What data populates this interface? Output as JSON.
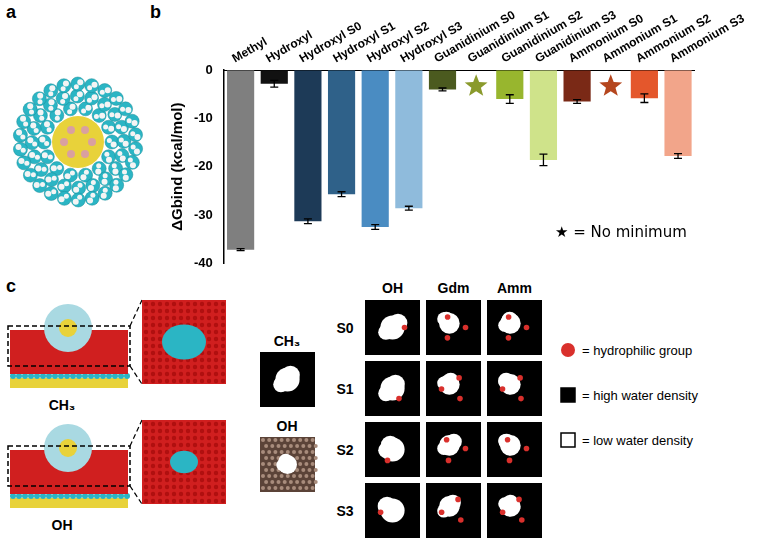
{
  "panel_labels": [
    "a",
    "b",
    "c"
  ],
  "chart_data": {
    "type": "bar",
    "categories": [
      "Methyl",
      "Hydroxyl",
      "Hydroxyl S0",
      "Hydroxyl S1",
      "Hydroxyl S2",
      "Hydroxyl S3",
      "Guanidinium S0",
      "Guanidinium S1",
      "Guanidinium S2",
      "Guanidinium S3",
      "Ammonium S0",
      "Ammonium S1",
      "Ammonium S2",
      "Ammonium S3"
    ],
    "values": [
      -37.2,
      -2.8,
      -31.3,
      -25.7,
      -32.5,
      -28.6,
      -4.0,
      null,
      -6.0,
      -18.6,
      -6.5,
      null,
      -5.8,
      -17.8
    ],
    "errors": [
      0.2,
      0.7,
      0.5,
      0.5,
      0.5,
      0.4,
      0.3,
      null,
      0.9,
      1.2,
      0.4,
      null,
      0.9,
      0.5
    ],
    "colors": [
      "#7f7f7f",
      "#111111",
      "#1d3a57",
      "#2f6189",
      "#4a8cc2",
      "#8fbbdc",
      "#4b5a1f",
      "#8a9a2c",
      "#98b62e",
      "#cfe38a",
      "#7a2916",
      "#b5461e",
      "#e4572c",
      "#f2a58a"
    ],
    "y_label": "ΔGbind (kcal/mol)",
    "ylim": [
      -40,
      0
    ],
    "yticks": [
      -40,
      -30,
      -20,
      -10,
      0
    ],
    "grid": false,
    "note": "★ = No minimum"
  },
  "panel_c": {
    "surfaces": [
      "CH₃",
      "OH"
    ],
    "reference_maps": [
      "CH₃",
      "OH"
    ],
    "columns": [
      "OH",
      "Gdm",
      "Amm"
    ],
    "rows": [
      "S0",
      "S1",
      "S2",
      "S3"
    ],
    "legend": [
      {
        "label": "= hydrophilic group",
        "marker": "circle",
        "color": "#d9302c"
      },
      {
        "label": "= high water density",
        "marker": "square",
        "color": "#000000"
      },
      {
        "label": "= low water density",
        "marker": "square",
        "color": "#ffffff"
      }
    ]
  }
}
